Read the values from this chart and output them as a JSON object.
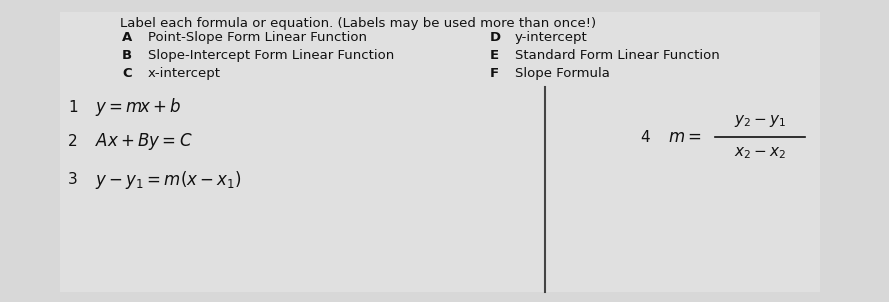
{
  "background_color": "#d8d8d8",
  "title_text": "Label each formula or equation. (Labels may be used more than once!)",
  "labels_left": [
    [
      "A",
      "Point-Slope Form Linear Function"
    ],
    [
      "B",
      "Slope-Intercept Form Linear Function"
    ],
    [
      "C",
      "x-intercept"
    ]
  ],
  "labels_right": [
    [
      "D",
      "y-intercept"
    ],
    [
      "E",
      "Standard Form Linear Function"
    ],
    [
      "F",
      "Slope Formula"
    ]
  ],
  "formulas": [
    {
      "num": "1",
      "expr": "$y = m\\!x + b$"
    },
    {
      "num": "2",
      "expr": "$Ax + By = C$"
    },
    {
      "num": "3",
      "expr": "$y - y_1 = m(x - x_1)$"
    }
  ],
  "formula4_num": "4",
  "formula4_m": "$m=$",
  "formula4_top": "$y_2 - y_1$",
  "formula4_bot": "$x_2 - x_2$",
  "text_color": "#111111"
}
